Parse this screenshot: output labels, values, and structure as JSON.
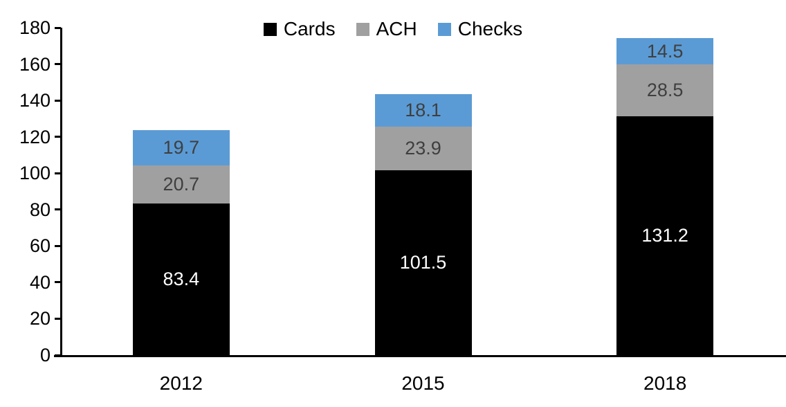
{
  "chart_data": {
    "type": "bar",
    "stacked": true,
    "title": "",
    "xlabel": "",
    "ylabel": "",
    "categories": [
      "2012",
      "2015",
      "2018"
    ],
    "series": [
      {
        "name": "Cards",
        "color": "#000000",
        "label_color": "#FFFFFF",
        "values": [
          83.4,
          101.5,
          131.2
        ]
      },
      {
        "name": "ACH",
        "color": "#A0A0A0",
        "label_color": "#3F3F3F",
        "values": [
          20.7,
          23.9,
          28.5
        ]
      },
      {
        "name": "Checks",
        "color": "#5B9BD5",
        "label_color": "#3F3F3F",
        "values": [
          19.7,
          18.1,
          14.5
        ]
      }
    ],
    "ylim": [
      0,
      180
    ],
    "yticks": [
      0,
      20,
      40,
      60,
      80,
      100,
      120,
      140,
      160,
      180
    ],
    "grid": false,
    "legend_position": "top-center",
    "legend": [
      "Cards",
      "ACH",
      "Checks"
    ]
  },
  "colors": {
    "axis": "#000000",
    "background": "#FFFFFF"
  }
}
